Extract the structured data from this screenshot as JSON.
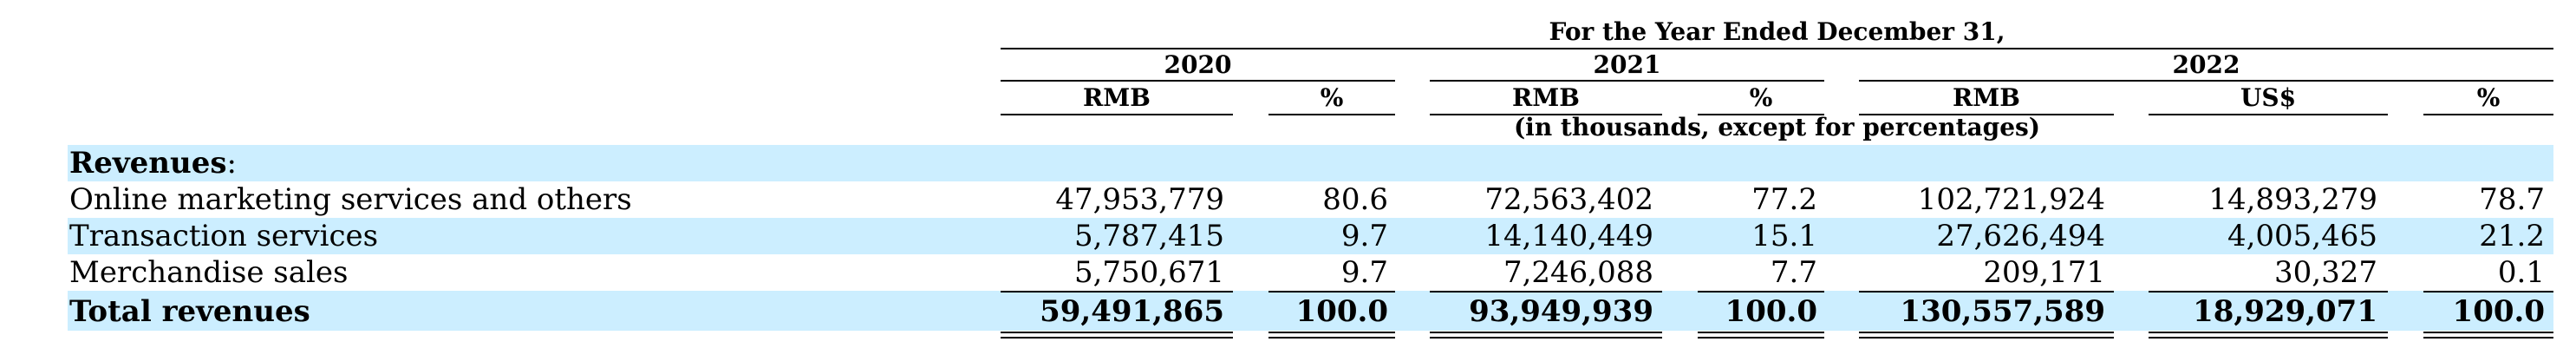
{
  "table": {
    "period_header": "For the Year Ended December 31,",
    "years": [
      "2020",
      "2021",
      "2022"
    ],
    "subheaders": [
      "RMB",
      "%",
      "RMB",
      "%",
      "RMB",
      "US$",
      "%"
    ],
    "unit_note": "(in thousands, except for percentages)",
    "section_label": "Revenues",
    "section_colon": ":",
    "rows": [
      {
        "label": "Online marketing services and others",
        "values": [
          "47,953,779",
          "80.6",
          "72,563,402",
          "77.2",
          "102,721,924",
          "14,893,279",
          "78.7"
        ]
      },
      {
        "label": "Transaction services",
        "values": [
          "5,787,415",
          "9.7",
          "14,140,449",
          "15.1",
          "27,626,494",
          "4,005,465",
          "21.2"
        ]
      },
      {
        "label": "Merchandise sales",
        "values": [
          "5,750,671",
          "9.7",
          "7,246,088",
          "7.7",
          "209,171",
          "30,327",
          "0.1"
        ]
      }
    ],
    "total": {
      "label": "Total revenues",
      "values": [
        "59,491,865",
        "100.0",
        "93,949,939",
        "100.0",
        "130,557,589",
        "18,929,071",
        "100.0"
      ]
    },
    "band_color": "#cceeff"
  }
}
